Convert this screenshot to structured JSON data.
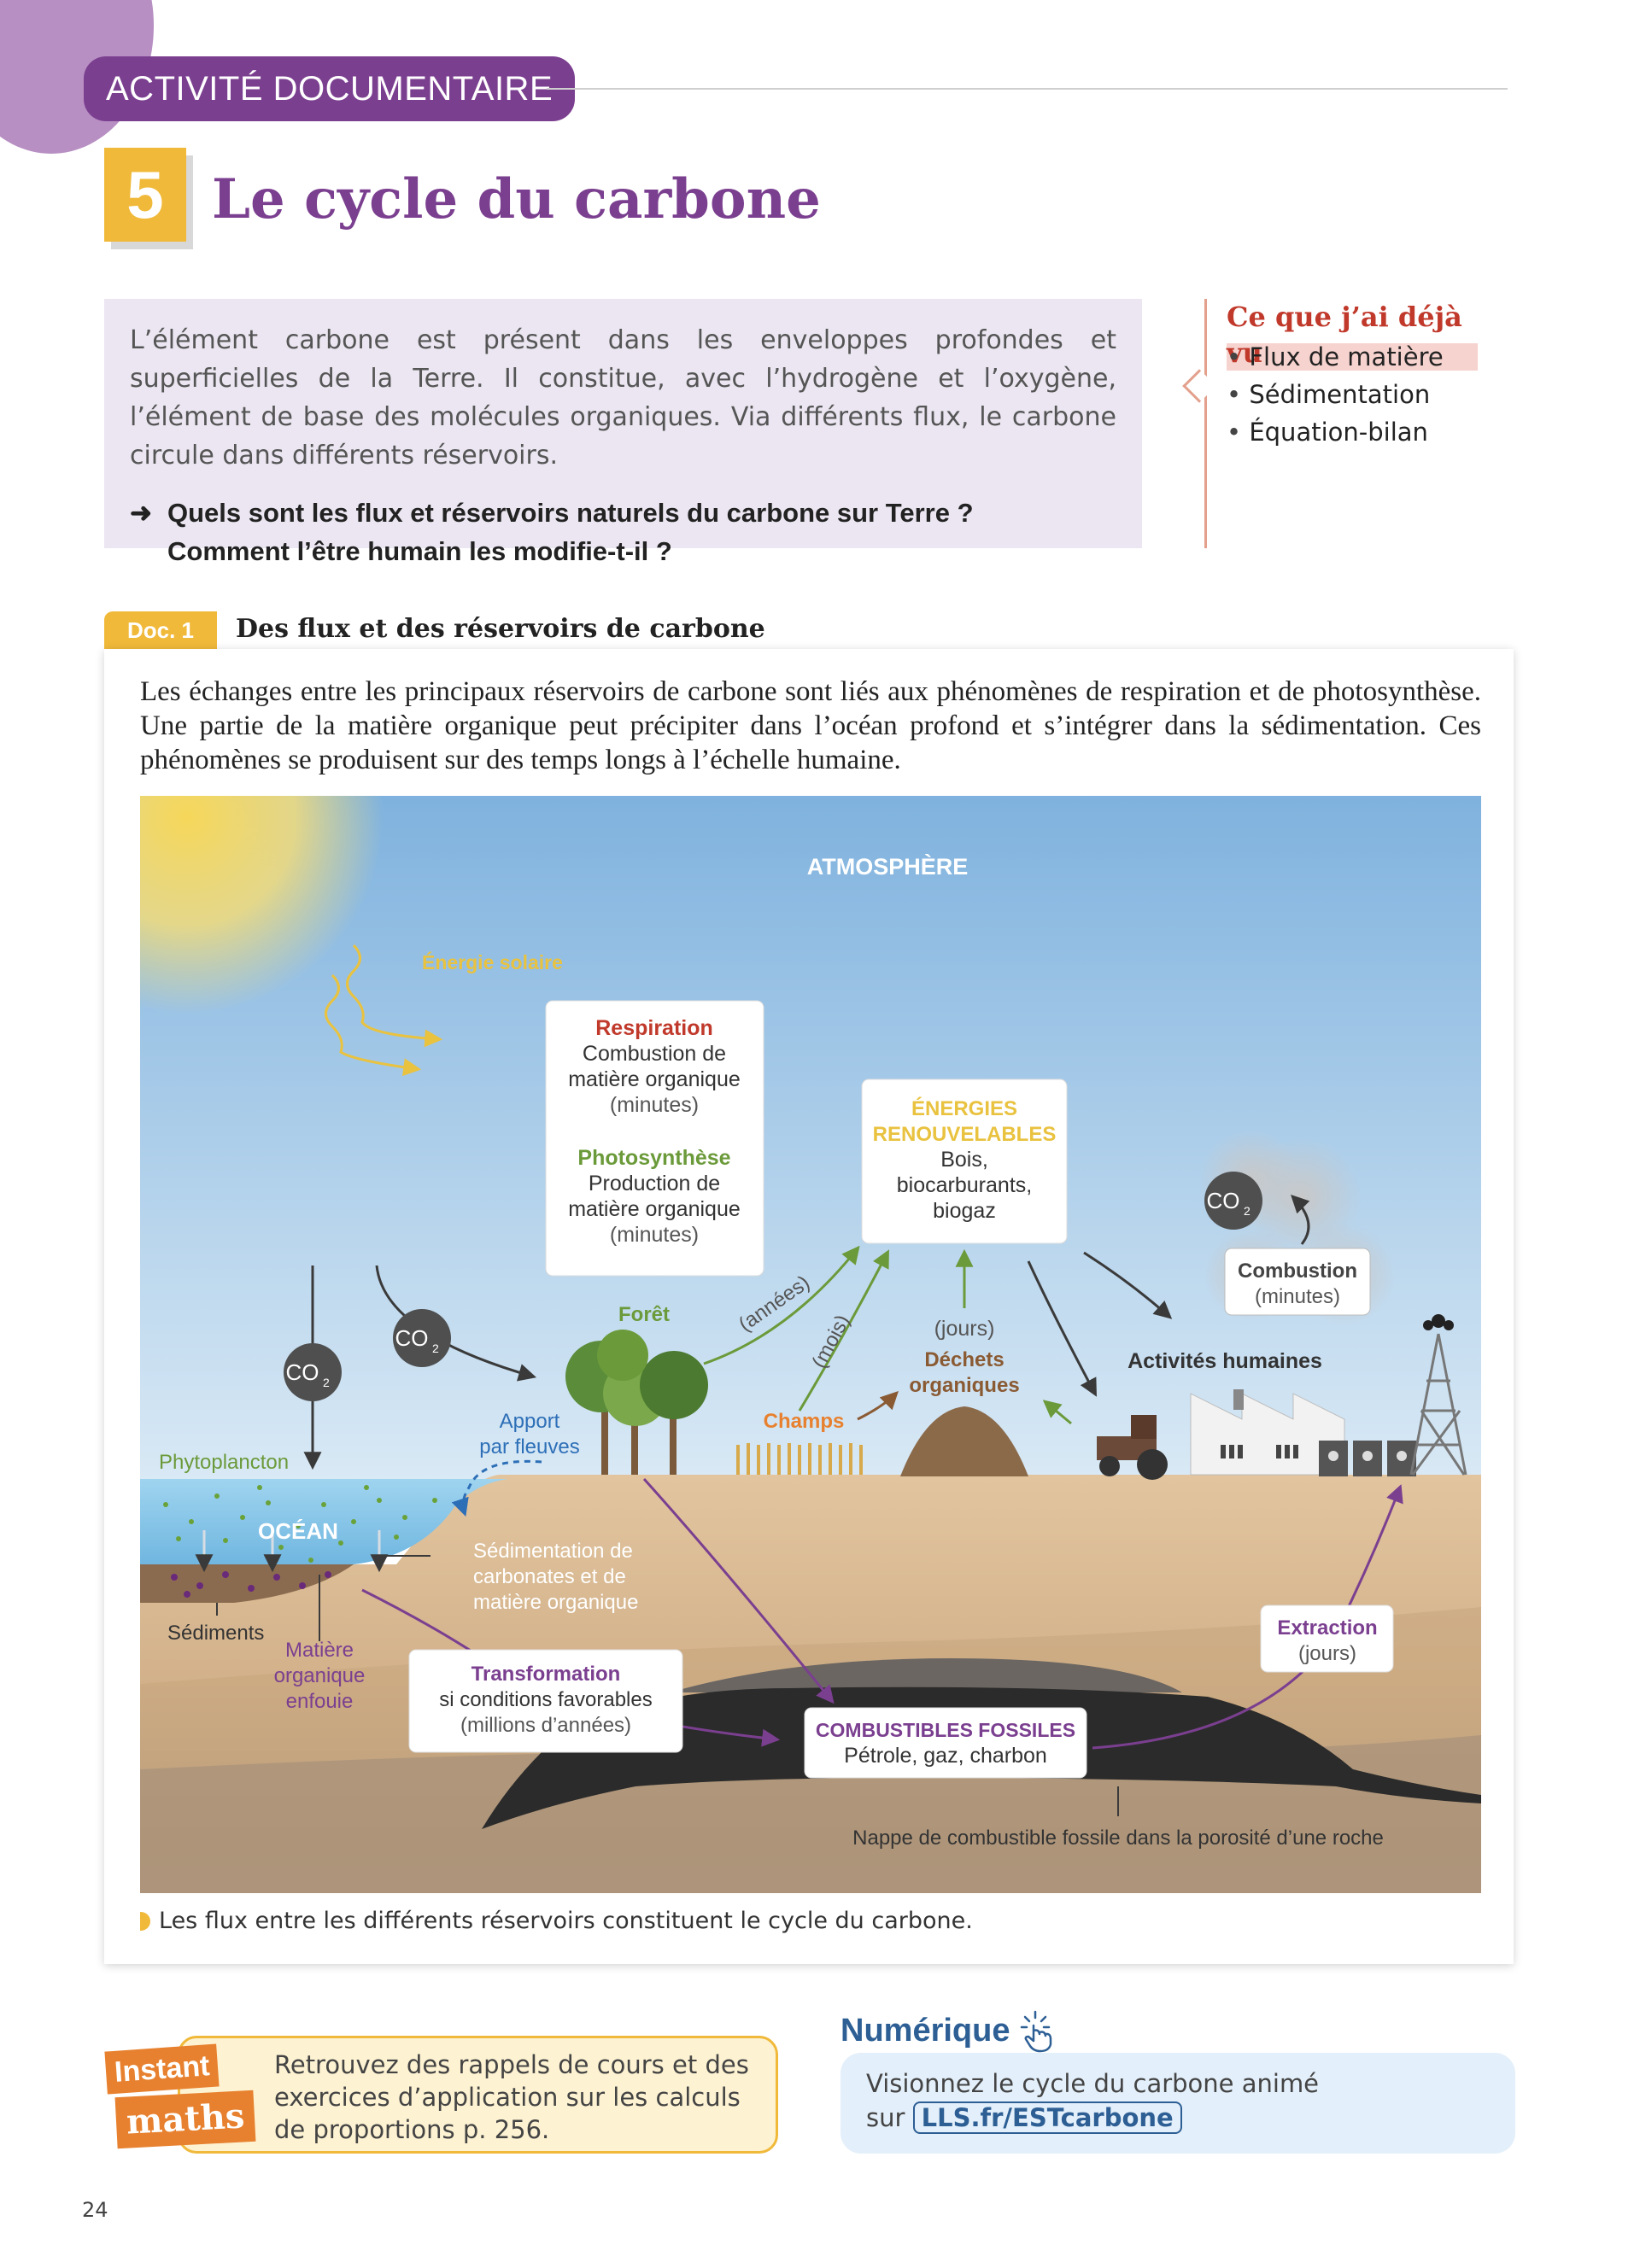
{
  "header": {
    "activity_tag": "ACTIVITÉ DOCUMENTAIRE",
    "number": "5",
    "title": "Le cycle du carbone"
  },
  "intro": {
    "text": "L’élément carbone est présent dans les enveloppes profondes et superficielles de la Terre. Il constitue, avec l’hydrogène et l’oxygène, l’élément de base des molécules organiques. Via différents flux, le carbone circule dans différents réservoirs.",
    "arrow": "➜",
    "question_1": "Quels sont les flux et réservoirs naturels du carbone sur Terre ?",
    "question_2": "Comment l’être humain les modifie-t-il ?"
  },
  "seen": {
    "title": "Ce que j’ai déjà vu",
    "items": [
      "Flux de matière",
      "Sédimentation",
      "Équation-bilan"
    ]
  },
  "doc": {
    "tag": "Doc. 1",
    "title": "Des flux et des réservoirs de carbone",
    "text": "Les échanges entre les principaux réservoirs de carbone sont liés aux phénomènes de respiration et de photosynthèse. Une partie de la matière organique peut précipiter dans l’océan profond et s’intégrer dans la sédimentation. Ces phénomènes se produisent sur des temps longs à l’échelle humaine.",
    "caption": "Les flux entre les différents réservoirs constituent le cycle du carbone."
  },
  "diagram": {
    "atmosphere": "ATMOSPHÈRE",
    "solar": "Énergie solaire",
    "respiration_title": "Respiration",
    "respiration_l1": "Combustion de",
    "respiration_l2": "matière organique",
    "respiration_l3": "(minutes)",
    "photo_title": "Photosynthèse",
    "photo_l1": "Production de",
    "photo_l2": "matière organique",
    "photo_l3": "(minutes)",
    "enr_title_1": "ÉNERGIES",
    "enr_title_2": "RENOUVELABLES",
    "enr_l1": "Bois,",
    "enr_l2": "biocarburants,",
    "enr_l3": "biogaz",
    "co2": "CO",
    "co2_sub": "2",
    "combustion_title": "Combustion",
    "combustion_time": "(minutes)",
    "activites": "Activités humaines",
    "foret": "Forêt",
    "annees": "(années)",
    "mois": "(mois)",
    "jours": "(jours)",
    "dechets_1": "Déchets",
    "dechets_2": "organiques",
    "champs": "Champs",
    "apport_1": "Apport",
    "apport_2": "par fleuves",
    "phyto": "Phytoplancton",
    "ocean": "OCÉAN",
    "sedim_1": "Sédimentation de",
    "sedim_2": "carbonates et de",
    "sedim_3": "matière organique",
    "sediments": "Sédiments",
    "mo_1": "Matière",
    "mo_2": "organique",
    "mo_3": "enfouie",
    "transf_title": "Transformation",
    "transf_l1": "si conditions favorables",
    "transf_l2": "(millions d’années)",
    "fossil_title": "COMBUSTIBLES FOSSILES",
    "fossil_l1": "Pétrole, gaz, charbon",
    "extraction_title": "Extraction",
    "extraction_time": "(jours)",
    "nappe": "Nappe de combustible fossile dans la porosité d’une roche"
  },
  "instant_maths": {
    "logo_1": "Instant",
    "logo_2": "maths",
    "text": "Retrouvez des rappels de cours et des exercices d’application sur les calculs de proportions p. 256."
  },
  "numerique": {
    "title": "Numérique",
    "text": "Visionnez le cycle du carbone animé",
    "prefix": "sur",
    "link": "LLS.fr/ESTcarbone"
  },
  "page_number": "24",
  "colors": {
    "purple": "#7b3f90",
    "yellow": "#f0b93a",
    "red": "#c0392b",
    "green": "#6b9a3a",
    "blue": "#2d5f95",
    "orange": "#e7812f"
  }
}
